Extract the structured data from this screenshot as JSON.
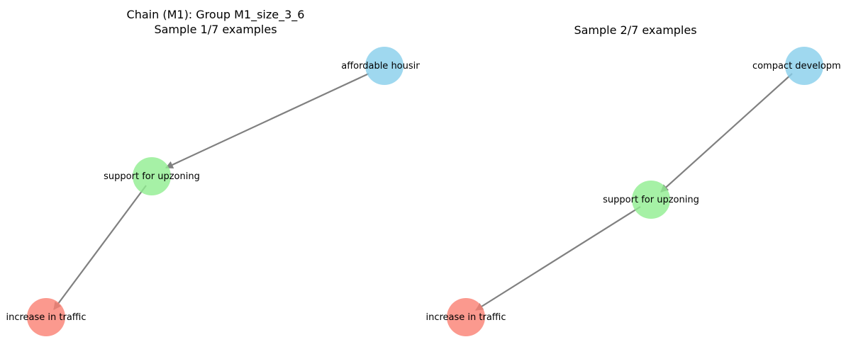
{
  "panels": [
    {
      "title_line1": "Chain (M1): Group M1_size_3_6",
      "title_line2": "Sample 1/7 examples",
      "nodes": [
        {
          "label": "affordable housing",
          "role": "source",
          "color": "#87CEEB"
        },
        {
          "label": "support for upzoning",
          "role": "middle",
          "color": "#90EE90"
        },
        {
          "label": "increase in traffic",
          "role": "target",
          "color": "#FA8072"
        }
      ]
    },
    {
      "title_line1": "",
      "title_line2": "Sample 2/7 examples",
      "nodes": [
        {
          "label": "compact development",
          "role": "source",
          "color": "#87CEEB"
        },
        {
          "label": "support for upzoning",
          "role": "middle",
          "color": "#90EE90"
        },
        {
          "label": "increase in traffic",
          "role": "target",
          "color": "#FA8072"
        }
      ]
    }
  ],
  "edge_color": "#808080"
}
